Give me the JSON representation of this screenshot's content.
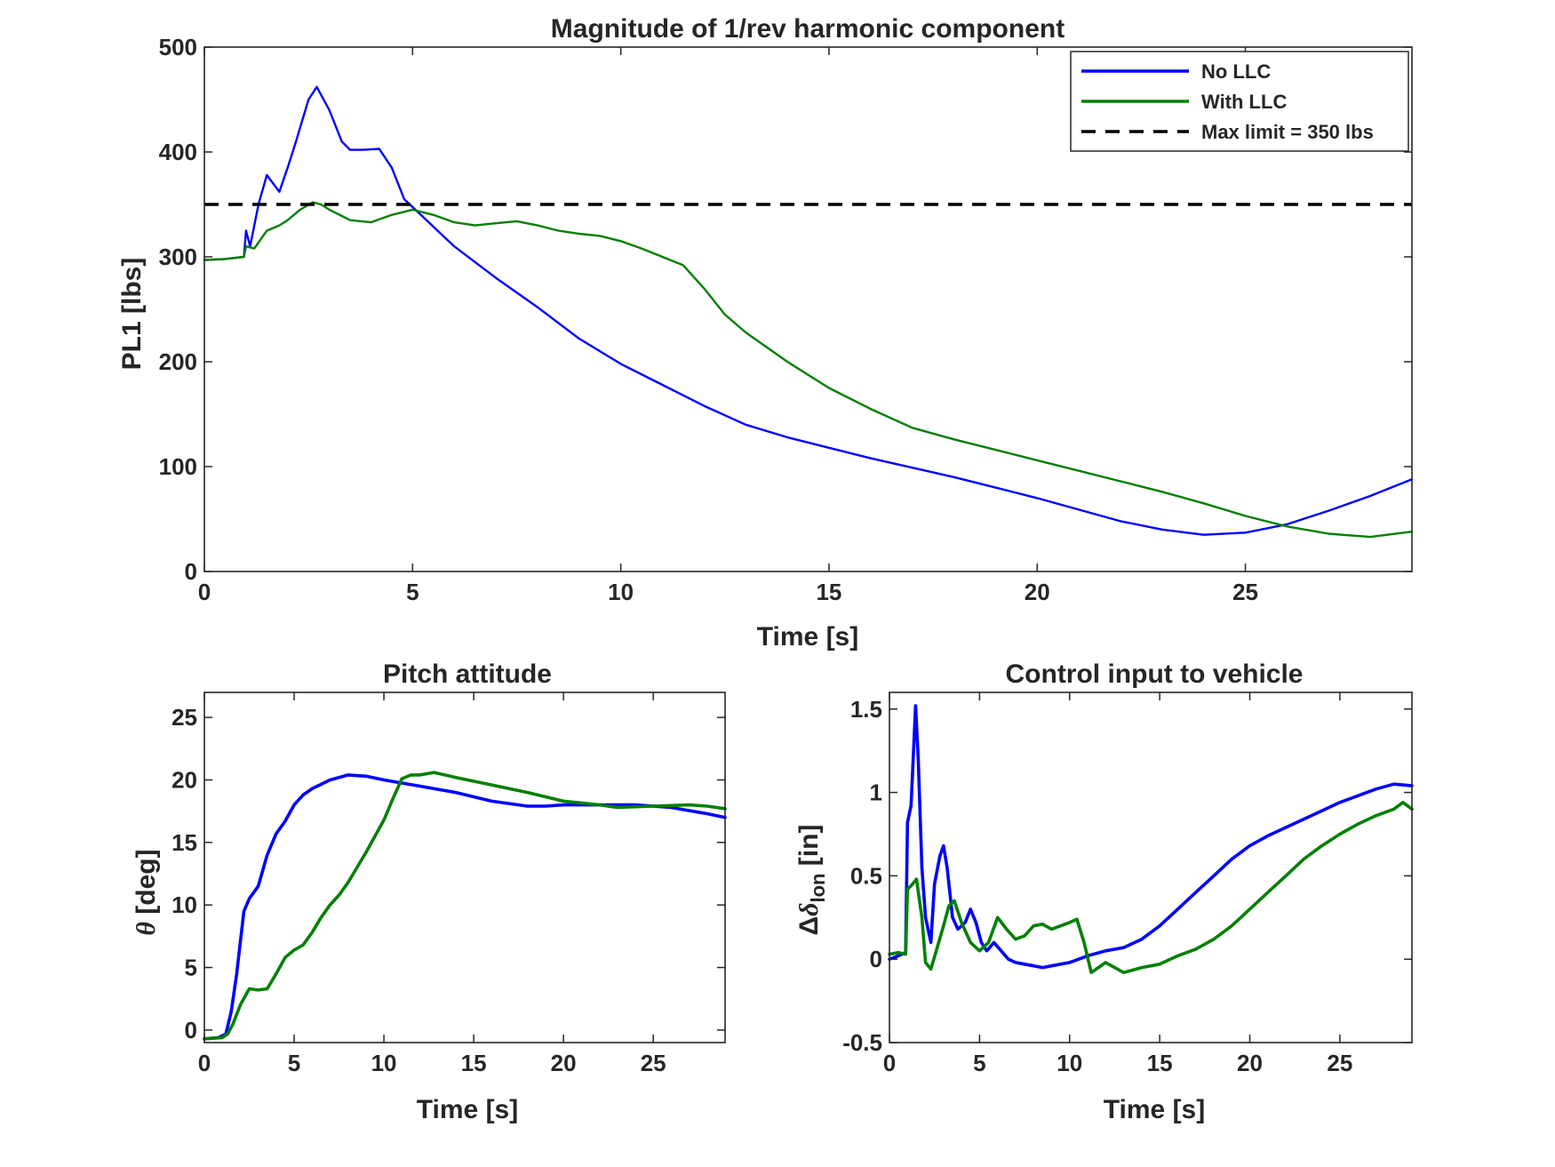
{
  "chart_data": [
    {
      "type": "line",
      "title": "Magnitude of 1/rev harmonic component",
      "xlabel": "Time [s]",
      "ylabel": "PL1 [lbs]",
      "xlim": [
        0,
        29
      ],
      "ylim": [
        0,
        500
      ],
      "xticks": [
        "0",
        "5",
        "10",
        "15",
        "20",
        "25"
      ],
      "yticks": [
        "0",
        "100",
        "200",
        "300",
        "400",
        "500"
      ],
      "legend_position": "top-right",
      "series": [
        {
          "name": "No LLC",
          "color": "#0000ff",
          "style": "solid",
          "x": [
            0,
            0.5,
            0.95,
            1.0,
            1.1,
            1.3,
            1.5,
            1.8,
            2.0,
            2.2,
            2.5,
            2.7,
            3.0,
            3.3,
            3.5,
            3.8,
            4.2,
            4.5,
            4.8,
            5.2,
            5.6,
            6.0,
            6.5,
            7.0,
            8.0,
            9.0,
            10.0,
            11.0,
            12.0,
            13.0,
            14.0,
            15.0,
            16.0,
            17.0,
            18.0,
            19.0,
            20.0,
            21.0,
            22.0,
            23.0,
            24.0,
            25.0,
            26.0,
            27.0,
            28.0,
            29.0
          ],
          "y": [
            297,
            298,
            300,
            325,
            310,
            350,
            378,
            362,
            385,
            410,
            450,
            462,
            440,
            410,
            402,
            402,
            403,
            385,
            355,
            340,
            325,
            310,
            295,
            280,
            252,
            222,
            198,
            178,
            158,
            140,
            128,
            118,
            108,
            99,
            90,
            80,
            70,
            59,
            48,
            40,
            35,
            37,
            45,
            58,
            72,
            88
          ]
        },
        {
          "name": "With LLC",
          "color": "#008000",
          "style": "solid",
          "x": [
            0,
            0.5,
            0.95,
            1.0,
            1.2,
            1.5,
            1.8,
            2.0,
            2.3,
            2.6,
            2.8,
            3.0,
            3.5,
            4.0,
            4.5,
            5.0,
            5.5,
            6.0,
            6.5,
            7.0,
            7.5,
            8.0,
            8.5,
            9.0,
            9.5,
            10.0,
            10.5,
            11.0,
            11.5,
            12.0,
            12.5,
            13.0,
            14.0,
            15.0,
            16.0,
            17.0,
            18.0,
            19.0,
            20.0,
            21.0,
            22.0,
            23.0,
            24.0,
            25.0,
            26.0,
            27.0,
            28.0,
            29.0
          ],
          "y": [
            297,
            298,
            300,
            310,
            308,
            325,
            330,
            335,
            345,
            352,
            350,
            345,
            335,
            333,
            340,
            345,
            340,
            333,
            330,
            332,
            334,
            330,
            325,
            322,
            320,
            315,
            308,
            300,
            292,
            270,
            245,
            228,
            200,
            175,
            155,
            137,
            126,
            116,
            106,
            96,
            86,
            76,
            65,
            53,
            43,
            36,
            33,
            38
          ]
        },
        {
          "name": "Max limit = 350 lbs",
          "color": "#000000",
          "style": "dashed",
          "x": [
            0,
            29
          ],
          "y": [
            350,
            350
          ]
        }
      ]
    },
    {
      "type": "line",
      "title": "Pitch attitude",
      "xlabel": "Time [s]",
      "ylabel_symbol": "θ",
      "ylabel": " [deg]",
      "xlim": [
        0,
        29
      ],
      "ylim": [
        -1,
        27
      ],
      "xticks": [
        "0",
        "5",
        "10",
        "15",
        "20",
        "25"
      ],
      "yticks": [
        "0",
        "5",
        "10",
        "15",
        "20",
        "25"
      ],
      "series": [
        {
          "name": "No LLC",
          "color": "#0000ff",
          "style": "solid",
          "x": [
            0,
            0.8,
            1.2,
            1.5,
            1.8,
            2.0,
            2.2,
            2.5,
            3.0,
            3.5,
            4.0,
            4.5,
            5.0,
            5.5,
            6.0,
            7.0,
            8.0,
            9.0,
            10.0,
            12.0,
            14.0,
            16.0,
            18.0,
            19.0,
            20.0,
            22.0,
            24.0,
            26.0,
            28.0,
            29.0
          ],
          "y": [
            -0.7,
            -0.6,
            -0.3,
            1.5,
            4.5,
            7.0,
            9.5,
            10.5,
            11.5,
            14.0,
            15.7,
            16.7,
            18.0,
            18.8,
            19.3,
            20.0,
            20.4,
            20.3,
            20.0,
            19.5,
            19.0,
            18.3,
            17.9,
            17.9,
            18.0,
            18.0,
            18.0,
            17.8,
            17.3,
            17.0
          ]
        },
        {
          "name": "With LLC",
          "color": "#008000",
          "style": "solid",
          "x": [
            0,
            1.0,
            1.3,
            1.6,
            2.0,
            2.5,
            3.0,
            3.5,
            4.0,
            4.5,
            5.0,
            5.5,
            6.0,
            6.5,
            7.0,
            7.5,
            8.0,
            8.5,
            9.0,
            9.5,
            10.0,
            10.5,
            11.0,
            11.5,
            12.0,
            12.8,
            14.0,
            16.0,
            18.0,
            20.0,
            22.0,
            23.0,
            25.0,
            27.0,
            28.0,
            29.0
          ],
          "y": [
            -0.7,
            -0.6,
            -0.3,
            0.5,
            2.0,
            3.3,
            3.2,
            3.3,
            4.5,
            5.8,
            6.4,
            6.8,
            7.8,
            9.0,
            10.0,
            10.8,
            11.8,
            13.0,
            14.2,
            15.5,
            16.8,
            18.5,
            20.1,
            20.4,
            20.4,
            20.6,
            20.2,
            19.6,
            19.0,
            18.3,
            18.0,
            17.8,
            17.9,
            18.0,
            17.9,
            17.7
          ]
        }
      ]
    },
    {
      "type": "line",
      "title": "Control input to vehicle",
      "xlabel": "Time [s]",
      "ylabel_prefix": "Δ",
      "ylabel_symbol": "δ",
      "ylabel_sub": "lon",
      "ylabel_suffix": " [in]",
      "xlim": [
        0,
        29
      ],
      "ylim": [
        -0.5,
        1.6
      ],
      "xticks": [
        "0",
        "5",
        "10",
        "15",
        "20",
        "25"
      ],
      "yticks": [
        "-0.5",
        "0",
        "0.5",
        "1",
        "1.5"
      ],
      "series": [
        {
          "name": "No LLC",
          "color": "#0000ff",
          "style": "solid",
          "x": [
            0,
            0.5,
            0.9,
            1.0,
            1.2,
            1.45,
            1.6,
            1.8,
            2.0,
            2.3,
            2.5,
            2.8,
            3.0,
            3.2,
            3.5,
            3.8,
            4.2,
            4.5,
            4.8,
            5.1,
            5.4,
            5.8,
            6.2,
            6.6,
            7.0,
            7.5,
            8.0,
            8.5,
            9.0,
            10.0,
            11.0,
            12.0,
            13.0,
            14.0,
            15.0,
            16.0,
            17.0,
            18.0,
            19.0,
            20.0,
            21.0,
            22.0,
            23.0,
            24.0,
            25.0,
            26.0,
            27.0,
            28.0,
            29.0
          ],
          "y": [
            0.0,
            0.02,
            0.04,
            0.82,
            0.92,
            1.52,
            1.2,
            0.55,
            0.25,
            0.1,
            0.45,
            0.62,
            0.68,
            0.55,
            0.25,
            0.18,
            0.22,
            0.3,
            0.22,
            0.1,
            0.05,
            0.1,
            0.05,
            0.0,
            -0.02,
            -0.03,
            -0.04,
            -0.05,
            -0.04,
            -0.02,
            0.02,
            0.05,
            0.07,
            0.12,
            0.2,
            0.3,
            0.4,
            0.5,
            0.6,
            0.68,
            0.74,
            0.79,
            0.84,
            0.89,
            0.94,
            0.98,
            1.02,
            1.05,
            1.04
          ]
        },
        {
          "name": "With LLC",
          "color": "#008000",
          "style": "solid",
          "x": [
            0,
            0.5,
            0.9,
            1.0,
            1.2,
            1.5,
            1.8,
            2.0,
            2.3,
            2.6,
            3.0,
            3.3,
            3.6,
            4.0,
            4.5,
            5.0,
            5.5,
            6.0,
            6.5,
            7.0,
            7.5,
            8.0,
            8.5,
            9.0,
            9.5,
            10.0,
            10.4,
            10.8,
            11.2,
            11.6,
            12.0,
            12.5,
            13.0,
            14.0,
            15.0,
            16.0,
            17.0,
            18.0,
            19.0,
            20.0,
            21.0,
            22.0,
            23.0,
            24.0,
            25.0,
            26.0,
            27.0,
            28.0,
            28.5,
            29.0
          ],
          "y": [
            0.03,
            0.04,
            0.03,
            0.42,
            0.44,
            0.48,
            0.25,
            -0.02,
            -0.06,
            0.05,
            0.2,
            0.32,
            0.35,
            0.22,
            0.1,
            0.05,
            0.1,
            0.25,
            0.18,
            0.12,
            0.14,
            0.2,
            0.21,
            0.18,
            0.2,
            0.22,
            0.24,
            0.1,
            -0.08,
            -0.05,
            -0.02,
            -0.05,
            -0.08,
            -0.05,
            -0.03,
            0.02,
            0.06,
            0.12,
            0.2,
            0.3,
            0.4,
            0.5,
            0.6,
            0.68,
            0.75,
            0.81,
            0.86,
            0.9,
            0.94,
            0.9
          ]
        }
      ]
    }
  ]
}
